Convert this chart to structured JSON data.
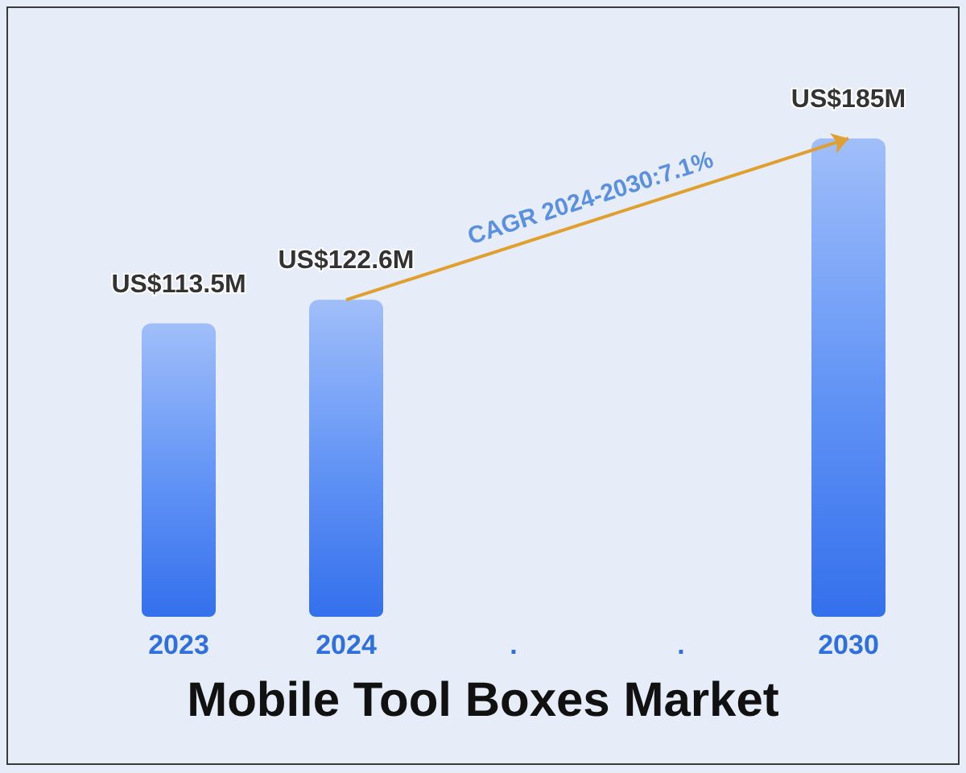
{
  "chart_data": {
    "type": "bar",
    "title": "Mobile Tool Boxes Market",
    "categories": [
      "2023",
      "2024",
      ".",
      ".",
      "2030"
    ],
    "values": [
      113500000,
      122600000,
      null,
      null,
      185000000
    ],
    "value_labels": [
      "US$113.5M",
      "US$122.6M",
      null,
      null,
      "US$185M"
    ],
    "color": "#6596f6",
    "annotations": [
      "CAGR 2024-2030:7.1%"
    ]
  }
}
